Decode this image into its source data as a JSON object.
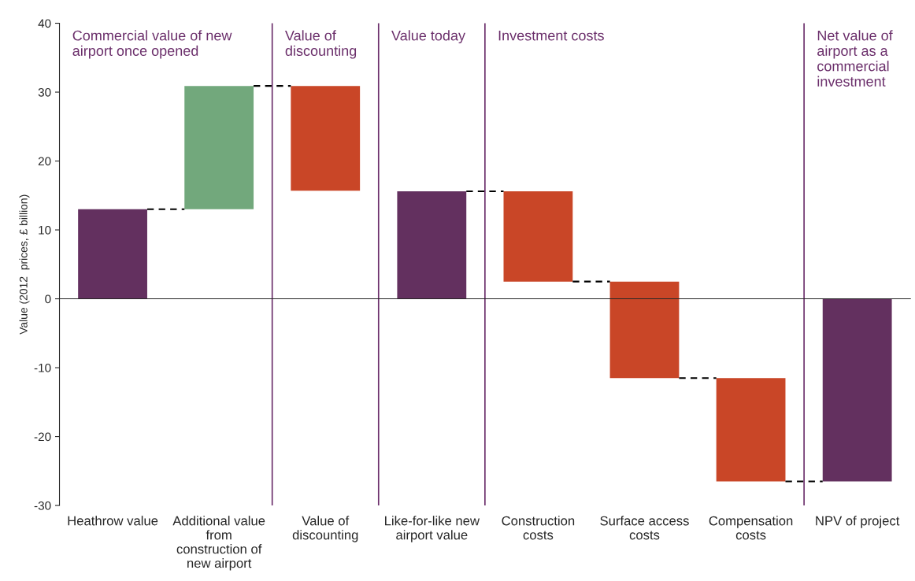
{
  "chart_data": {
    "type": "bar",
    "ylabel": "Value (2012  prices, £ billion)",
    "categories": [
      "Heathrow value",
      "Additional value\nfrom\nconstruction of\nnew airport",
      "Value of\ndiscounting",
      "Like-for-like new\nairport value",
      "Construction\ncosts",
      "Surface access\ncosts",
      "Compensation\ncosts",
      "NPV of project"
    ],
    "values": [
      13,
      17.9,
      15.2,
      15.6,
      13.1,
      14.0,
      15.0,
      -26.5
    ],
    "base": [
      0,
      13,
      15.7,
      0,
      2.5,
      -11.5,
      -26.5,
      0
    ],
    "colors": [
      "#63305f",
      "#72a87c",
      "#c94627",
      "#63305f",
      "#c94627",
      "#c94627",
      "#c94627",
      "#63305f"
    ],
    "ylim": [
      -30,
      40
    ],
    "yticks": [
      -30,
      -20,
      -10,
      0,
      10,
      20,
      30,
      40
    ],
    "grid": false,
    "annotations": [
      "Commercial value of new\nairport once opened",
      "Value of\ndiscounting",
      "Value today",
      "Investment costs",
      "Net value of\nairport as a\ncommercial\ninvestment"
    ]
  }
}
